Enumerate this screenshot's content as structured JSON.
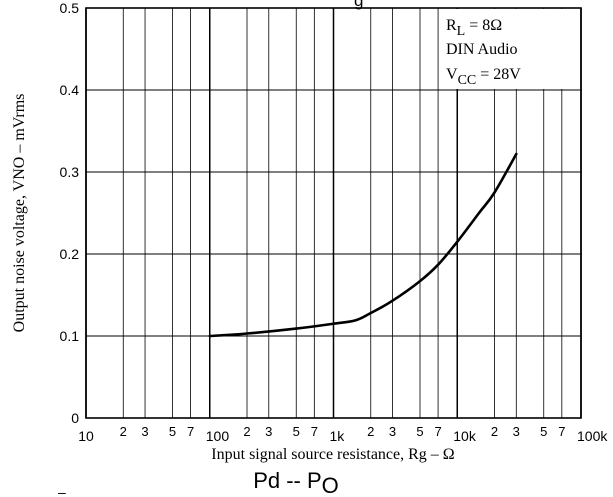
{
  "chart_data": {
    "type": "line",
    "title": "",
    "title_fragment": "g",
    "xlabel": "Input signal source resistance, Rg – Ω",
    "ylabel": "Output noise voltage, VNO – mVrms",
    "x_scale": "log",
    "xlim": [
      10,
      100000
    ],
    "ylim": [
      0,
      0.5
    ],
    "grid": true,
    "x_major_ticks": [
      {
        "value": 10,
        "label": "10"
      },
      {
        "value": 100,
        "label": "100"
      },
      {
        "value": 1000,
        "label": "1k"
      },
      {
        "value": 10000,
        "label": "10k"
      },
      {
        "value": 100000,
        "label": "100k"
      }
    ],
    "x_minor_ticks": [
      {
        "value": 20,
        "label": "2"
      },
      {
        "value": 30,
        "label": "3"
      },
      {
        "value": 50,
        "label": "5"
      },
      {
        "value": 70,
        "label": "7"
      },
      {
        "value": 200,
        "label": "2"
      },
      {
        "value": 300,
        "label": "3"
      },
      {
        "value": 500,
        "label": "5"
      },
      {
        "value": 700,
        "label": "7"
      },
      {
        "value": 2000,
        "label": "2"
      },
      {
        "value": 3000,
        "label": "3"
      },
      {
        "value": 5000,
        "label": "5"
      },
      {
        "value": 7000,
        "label": "7"
      },
      {
        "value": 20000,
        "label": "2"
      },
      {
        "value": 30000,
        "label": "3"
      },
      {
        "value": 50000,
        "label": "5"
      },
      {
        "value": 70000,
        "label": "7"
      }
    ],
    "y_ticks": [
      {
        "value": 0,
        "label": "0"
      },
      {
        "value": 0.1,
        "label": "0.1"
      },
      {
        "value": 0.2,
        "label": "0.2"
      },
      {
        "value": 0.3,
        "label": "0.3"
      },
      {
        "value": 0.4,
        "label": "0.4"
      },
      {
        "value": 0.5,
        "label": "0.5"
      }
    ],
    "series": [
      {
        "x": [
          100,
          200,
          500,
          1000,
          1500,
          2000,
          3000,
          5000,
          7000,
          10000,
          15000,
          20000,
          30000
        ],
        "y": [
          0.1,
          0.103,
          0.109,
          0.115,
          0.119,
          0.128,
          0.143,
          0.167,
          0.187,
          0.215,
          0.25,
          0.275,
          0.322
        ]
      }
    ],
    "annotation": {
      "line1_main": "R",
      "line1_sub": "L",
      "line1_rest": " = 8Ω",
      "line2": "DIN Audio",
      "line3_main": "V",
      "line3_sub": "CC",
      "line3_rest": " = 28V"
    }
  },
  "next_chart_title": {
    "main": "Pd -- P",
    "sub": "O"
  },
  "stray_mark": "–"
}
